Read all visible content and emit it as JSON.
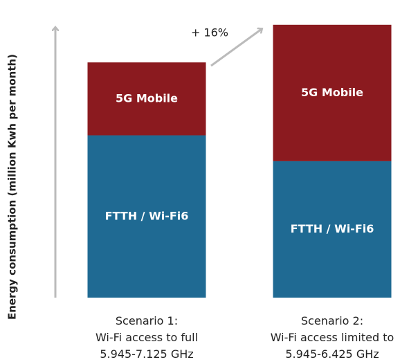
{
  "chart_data": {
    "type": "stacked_bar",
    "y_label": "Energy consumption (million Kwh per month)",
    "annotation": "+ 16%",
    "categories": [
      "Scenario 1:\nWi-Fi access to full\n5.945-7.125 GHz",
      "Scenario 2:\nWi-Fi access limited to\n5.945-6.425 GHz"
    ],
    "series": [
      {
        "name": "FTTH / Wi-Fi6",
        "color": "#1f6a93",
        "values": [
          69,
          58
        ]
      },
      {
        "name": "5G Mobile",
        "color": "#8b1a1f",
        "values": [
          31,
          58
        ]
      }
    ],
    "ylim": [
      0,
      118
    ]
  }
}
